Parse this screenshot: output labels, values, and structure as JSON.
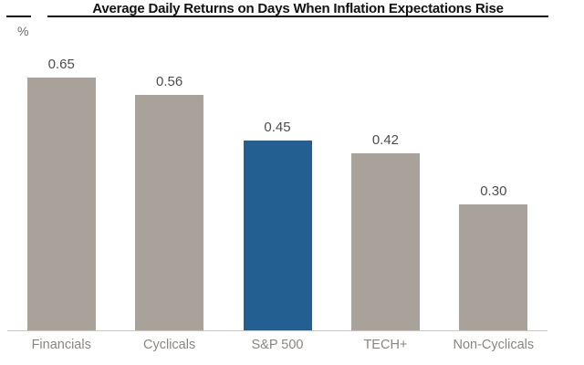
{
  "chart_data": {
    "type": "bar",
    "title": "Average Daily Returns on Days When Inflation Expectations Rise",
    "ylabel": "%",
    "categories": [
      "Financials",
      "Cyclicals",
      "S&P 500",
      "TECH+",
      "Non-Cyclicals"
    ],
    "values": [
      0.65,
      0.56,
      0.45,
      0.42,
      0.3
    ],
    "value_labels": [
      "0.65",
      "0.56",
      "0.45",
      "0.42",
      "0.30"
    ],
    "highlight_category": "S&P 500",
    "ylim": [
      0,
      0.65
    ],
    "grid": false,
    "y_axis_ticks": false,
    "legend": "none",
    "colors": {
      "bar": "#a8a29b",
      "highlight_bar": "#235f90",
      "value_label": "#4d4d4d",
      "category_label": "#8a8580",
      "baseline": "#c9c7c4",
      "title": "#121212"
    }
  }
}
